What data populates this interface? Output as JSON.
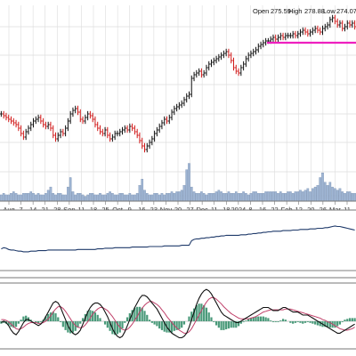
{
  "chart_data": {
    "type": "line",
    "subtype": "ohlc-stock-chart",
    "ohlc_readout": {
      "open_label": "Open",
      "open": "275.59",
      "high_label": "High",
      "high": "278.88",
      "low_label": "Low",
      "low": "274.07"
    },
    "price": {
      "grid": true,
      "ylim": [
        0,
        100
      ],
      "close": [
        44,
        43,
        42,
        41,
        40,
        39,
        38,
        36,
        33,
        31,
        34,
        36,
        38,
        40,
        41,
        42,
        40,
        38,
        37,
        38,
        36,
        32,
        30,
        32,
        34,
        33,
        36,
        40,
        44,
        46,
        47,
        45,
        41,
        40,
        42,
        44,
        43,
        41,
        38,
        36,
        34,
        33,
        35,
        32,
        30,
        31,
        33,
        33,
        34,
        35,
        36,
        35,
        37,
        36,
        34,
        32,
        29,
        26,
        24,
        26,
        28,
        30,
        33,
        35,
        37,
        39,
        41,
        40,
        42,
        45,
        47,
        48,
        49,
        50,
        52,
        54,
        55,
        64,
        66,
        67,
        68,
        66,
        67,
        70,
        72,
        73,
        74,
        75,
        76,
        77,
        78,
        79,
        77,
        74,
        70,
        68,
        67,
        70,
        72,
        75,
        77,
        78,
        79,
        80,
        82,
        83,
        84,
        85,
        85,
        86,
        87,
        86,
        87,
        88,
        87,
        88,
        88,
        88,
        89,
        88,
        89,
        90,
        91,
        90,
        89,
        90,
        91,
        92,
        91,
        90,
        92,
        93,
        94,
        97,
        98,
        96,
        94,
        95,
        92,
        93,
        95,
        94,
        95,
        93
      ],
      "hlines": [
        {
          "value": 84,
          "color": "#ee1fbf",
          "from_fraction": 0.75
        }
      ]
    },
    "volume": [
      4,
      5,
      4,
      4,
      5,
      6,
      5,
      4,
      4,
      5,
      5,
      5,
      6,
      5,
      4,
      5,
      4,
      4,
      5,
      7,
      9,
      5,
      4,
      5,
      5,
      4,
      4,
      9,
      15,
      6,
      4,
      5,
      5,
      4,
      3,
      4,
      5,
      5,
      4,
      4,
      5,
      4,
      4,
      5,
      6,
      5,
      4,
      4,
      5,
      5,
      4,
      4,
      5,
      4,
      4,
      5,
      10,
      14,
      7,
      5,
      4,
      4,
      5,
      5,
      4,
      5,
      4,
      5,
      5,
      6,
      5,
      6,
      6,
      7,
      10,
      20,
      24,
      9,
      6,
      5,
      5,
      6,
      5,
      4,
      5,
      5,
      5,
      6,
      7,
      6,
      5,
      5,
      6,
      5,
      5,
      6,
      5,
      5,
      6,
      5,
      4,
      5,
      6,
      6,
      5,
      5,
      5,
      6,
      6,
      6,
      6,
      6,
      5,
      6,
      5,
      5,
      6,
      6,
      5,
      6,
      6,
      7,
      6,
      7,
      8,
      6,
      8,
      9,
      10,
      15,
      18,
      12,
      10,
      12,
      9,
      8,
      7,
      8,
      6,
      5,
      6,
      6,
      5,
      5
    ],
    "x_tick_labels": [
      "Aug",
      "7",
      "14",
      "21",
      "28",
      "Sep",
      "11",
      "18",
      "25",
      "Oct",
      "9",
      "16",
      "23",
      "Nov",
      "20",
      "27",
      "Dec",
      "11",
      "18",
      "2024",
      "8",
      "16",
      "22",
      "Feb",
      "12",
      "20",
      "26",
      "Mar",
      "11"
    ],
    "indicator_line": [
      40,
      42,
      41,
      39,
      38,
      38,
      37,
      36,
      36,
      35,
      35,
      35,
      36,
      36,
      36,
      37,
      37,
      37,
      37,
      38,
      38,
      38,
      38,
      38,
      38,
      38,
      38,
      38,
      38,
      38,
      38,
      39,
      39,
      39,
      39,
      39,
      39,
      39,
      39,
      40,
      40,
      40,
      41,
      41,
      41,
      41,
      42,
      42,
      42,
      42,
      42,
      42,
      42,
      43,
      43,
      43,
      43,
      43,
      43,
      43,
      44,
      44,
      44,
      44,
      44,
      44,
      45,
      45,
      45,
      45,
      45,
      45,
      45,
      46,
      46,
      46,
      46,
      54,
      56,
      57,
      57,
      58,
      58,
      59,
      59,
      60,
      60,
      61,
      61,
      62,
      62,
      63,
      63,
      63,
      63,
      63,
      63,
      64,
      64,
      64,
      65,
      65,
      66,
      66,
      67,
      67,
      68,
      68,
      69,
      69,
      70,
      70,
      70,
      70,
      71,
      71,
      71,
      71,
      72,
      72,
      72,
      73,
      73,
      73,
      73,
      74,
      74,
      74,
      75,
      75,
      75,
      76,
      76,
      77,
      78,
      79,
      78,
      78,
      77,
      76,
      75,
      74,
      73,
      72
    ],
    "macd": {
      "macd_line": [
        30,
        32,
        30,
        26,
        20,
        16,
        14,
        18,
        24,
        30,
        34,
        34,
        32,
        30,
        28,
        26,
        28,
        32,
        38,
        44,
        50,
        56,
        58,
        56,
        50,
        42,
        34,
        26,
        20,
        16,
        14,
        16,
        20,
        28,
        36,
        44,
        50,
        54,
        56,
        56,
        54,
        50,
        44,
        38,
        30,
        22,
        16,
        12,
        10,
        12,
        18,
        26,
        34,
        42,
        50,
        56,
        62,
        66,
        66,
        64,
        60,
        56,
        52,
        48,
        42,
        36,
        30,
        24,
        20,
        16,
        14,
        12,
        10,
        10,
        12,
        16,
        24,
        34,
        44,
        54,
        62,
        68,
        72,
        74,
        72,
        68,
        62,
        56,
        50,
        44,
        40,
        38,
        36,
        34,
        32,
        30,
        30,
        32,
        34,
        36,
        38,
        40,
        42,
        44,
        46,
        48,
        50,
        50,
        50,
        48,
        46,
        46,
        46,
        48,
        50,
        50,
        48,
        46,
        44,
        44,
        44,
        42,
        40,
        40,
        40,
        38,
        36,
        34,
        32,
        30,
        28,
        26,
        24,
        22,
        20,
        18,
        16,
        16,
        18,
        20,
        22,
        24,
        26,
        28
      ],
      "signal_line": [
        34,
        34,
        33,
        31,
        28,
        25,
        22,
        21,
        22,
        24,
        27,
        29,
        30,
        30,
        30,
        29,
        29,
        30,
        32,
        35,
        39,
        44,
        48,
        51,
        51,
        49,
        45,
        40,
        35,
        30,
        26,
        24,
        23,
        24,
        27,
        31,
        36,
        41,
        45,
        48,
        50,
        50,
        48,
        46,
        42,
        38,
        33,
        28,
        24,
        21,
        20,
        21,
        24,
        28,
        33,
        38,
        44,
        49,
        53,
        56,
        58,
        58,
        56,
        54,
        51,
        47,
        43,
        38,
        34,
        30,
        26,
        23,
        20,
        18,
        16,
        16,
        18,
        22,
        28,
        34,
        40,
        46,
        52,
        57,
        61,
        63,
        63,
        61,
        58,
        55,
        51,
        48,
        45,
        42,
        40,
        38,
        36,
        35,
        35,
        35,
        35,
        36,
        37,
        38,
        40,
        42,
        44,
        45,
        46,
        47,
        47,
        47,
        47,
        47,
        47,
        48,
        48,
        48,
        47,
        46,
        45,
        44,
        43,
        42,
        41,
        40,
        39,
        38,
        37,
        36,
        34,
        33,
        31,
        30,
        28,
        26,
        24,
        22,
        21,
        20,
        20,
        21,
        22,
        24
      ],
      "histogram": [
        -3,
        -2,
        -3,
        -5,
        -7,
        -8,
        -7,
        -3,
        2,
        6,
        7,
        5,
        2,
        0,
        -2,
        -3,
        -1,
        2,
        6,
        9,
        11,
        12,
        10,
        5,
        -1,
        -7,
        -11,
        -14,
        -15,
        -14,
        -12,
        -8,
        -3,
        4,
        9,
        13,
        14,
        13,
        11,
        8,
        4,
        0,
        -4,
        -8,
        -12,
        -16,
        -17,
        -16,
        -14,
        -9,
        -2,
        5,
        10,
        14,
        17,
        18,
        18,
        17,
        13,
        8,
        2,
        -2,
        -4,
        -6,
        -9,
        -11,
        -13,
        -14,
        -14,
        -14,
        -12,
        -11,
        -10,
        -8,
        -4,
        0,
        6,
        12,
        16,
        20,
        22,
        22,
        20,
        17,
        11,
        5,
        -1,
        -5,
        -8,
        -11,
        -11,
        -10,
        -9,
        -8,
        -8,
        -8,
        -6,
        -3,
        -1,
        1,
        3,
        4,
        5,
        6,
        6,
        6,
        6,
        5,
        4,
        1,
        -1,
        -1,
        -1,
        1,
        3,
        2,
        0,
        -2,
        -3,
        -2,
        -1,
        -2,
        -3,
        -2,
        -1,
        -2,
        -3,
        -4,
        -5,
        -6,
        -7,
        -7,
        -7,
        -8,
        -8,
        -8,
        -6,
        -4,
        -1,
        2,
        3,
        4,
        4,
        4
      ]
    },
    "colors": {
      "up": "#111111",
      "down": "#d11a1a",
      "volume": "#9fb5d3",
      "volume_edge": "#6b84a8",
      "indicator": "#1f3a6a",
      "macd": "#111111",
      "signal": "#c0416a",
      "histogram": "#4a9a7a",
      "grid": "#dcdcdc",
      "border": "#777777"
    }
  }
}
